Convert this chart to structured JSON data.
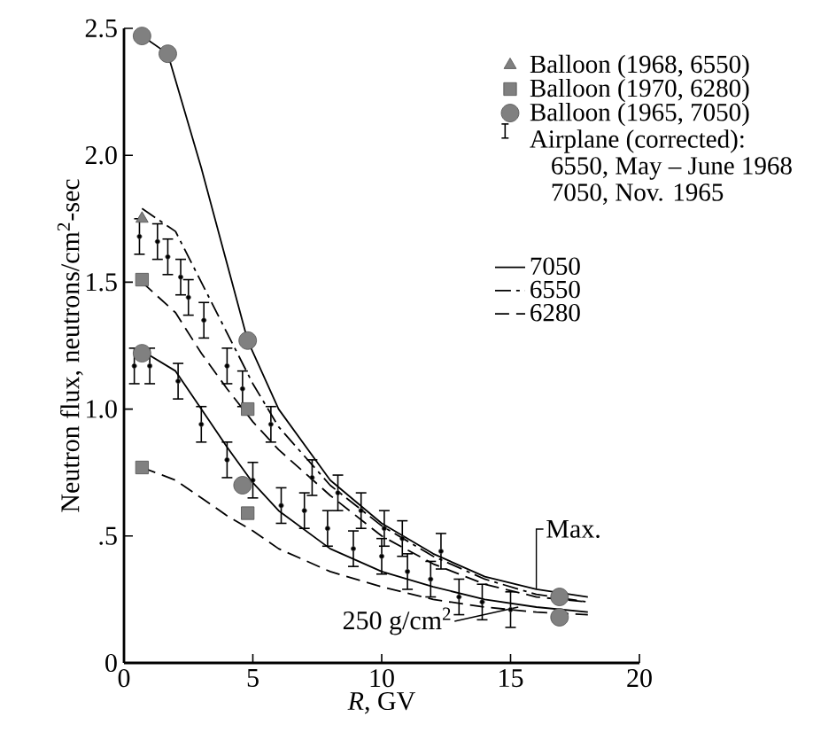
{
  "chart_data": {
    "type": "line",
    "xlabel": "*R*, GV",
    "ylabel": "Neutron flux, neutrons/cm$^{2}$-sec",
    "xlim": [
      0,
      20
    ],
    "xticks": [
      0,
      5,
      10,
      15,
      20
    ],
    "ylim": [
      0,
      2.5
    ],
    "yticks": [
      0,
      {
        "value": 0.5,
        "label": ".5"
      },
      {
        "value": 1.0,
        "label": "1.0"
      },
      {
        "value": 1.5,
        "label": "1.5"
      },
      {
        "value": 2.0,
        "label": "2.0"
      },
      {
        "value": 2.5,
        "label": "2.5"
      }
    ],
    "legend": "top right",
    "series": [
      {
        "name": "Balloon (1968, 6550)",
        "type": "scatter",
        "marker": "triangle",
        "color": "#808080",
        "x": [
          0.7
        ],
        "values": [
          1.75
        ]
      },
      {
        "name": "Balloon (1970, 6280)",
        "type": "scatter",
        "marker": "square",
        "color": "#808080",
        "x": [
          0.7,
          4.8,
          0.7,
          4.8
        ],
        "values": [
          1.51,
          1.0,
          0.77,
          0.59
        ]
      },
      {
        "name": "Balloon (1965, 7050)",
        "type": "scatter",
        "marker": "circle",
        "color": "#808080",
        "x": [
          0.7,
          1.7,
          4.8,
          16.9,
          0.7,
          4.6,
          16.9
        ],
        "values": [
          2.47,
          2.4,
          1.27,
          0.26,
          1.22,
          0.7,
          0.18
        ]
      },
      {
        "name": "Airplane (corrected): 6550, May – June 1968 7050, Nov. 1965",
        "type": "scatter",
        "marker": "circle",
        "color": "#000000",
        "x": [
          0.6,
          1.3,
          1.7,
          2.2,
          2.5,
          3.1,
          4.0,
          4.6,
          5.7,
          7.3,
          8.3,
          9.2,
          10.1,
          10.8,
          12.3,
          0.4,
          1.0,
          2.1,
          3.0,
          4.0,
          5.0,
          6.1,
          7.0,
          7.9,
          8.9,
          10.0,
          11.0,
          11.9,
          13.0,
          13.9,
          15.0
        ],
        "values": [
          1.68,
          1.66,
          1.6,
          1.52,
          1.44,
          1.35,
          1.17,
          1.08,
          0.94,
          0.73,
          0.67,
          0.6,
          0.53,
          0.49,
          0.44,
          1.17,
          1.17,
          1.11,
          0.94,
          0.8,
          0.72,
          0.62,
          0.6,
          0.53,
          0.45,
          0.42,
          0.36,
          0.33,
          0.26,
          0.24,
          0.21
        ],
        "errors": [
          0.07,
          0.07,
          0.07,
          0.07,
          0.07,
          0.07,
          0.07,
          0.07,
          0.07,
          0.07,
          0.07,
          0.07,
          0.07,
          0.07,
          0.07,
          0.07,
          0.07,
          0.07,
          0.07,
          0.07,
          0.07,
          0.07,
          0.07,
          0.07,
          0.07,
          0.07,
          0.07,
          0.07,
          0.07,
          0.07,
          0.07
        ]
      },
      {
        "name": "7050",
        "line_style": "solid",
        "color": "#000000",
        "x": [
          0.7,
          1.7,
          3,
          4.8,
          6,
          8,
          10,
          12,
          14,
          16,
          18
        ],
        "values": [
          2.47,
          2.4,
          1.95,
          1.27,
          1.0,
          0.72,
          0.55,
          0.43,
          0.34,
          0.29,
          0.26
        ]
      },
      {
        "name": "6550",
        "line_style": "dashdot",
        "color": "#000000",
        "x": [
          0.7,
          2,
          3,
          4,
          5,
          6,
          8,
          10,
          12,
          14,
          16,
          18
        ],
        "values": [
          1.79,
          1.7,
          1.5,
          1.3,
          1.1,
          0.93,
          0.7,
          0.54,
          0.42,
          0.33,
          0.27,
          0.24
        ]
      },
      {
        "name": "6280",
        "line_style": "dashed",
        "color": "#000000",
        "x": [
          0.7,
          2,
          3,
          4,
          5,
          6,
          8,
          10,
          12,
          14,
          16,
          18
        ],
        "values": [
          1.5,
          1.38,
          1.22,
          1.08,
          0.95,
          0.84,
          0.66,
          0.5,
          0.39,
          0.31,
          0.26,
          0.24
        ]
      },
      {
        "line_style": "solid",
        "color": "#000000",
        "x": [
          0.7,
          2,
          3,
          4,
          5,
          6,
          8,
          10,
          12,
          14,
          16,
          18
        ],
        "values": [
          1.23,
          1.15,
          1.0,
          0.85,
          0.71,
          0.6,
          0.45,
          0.36,
          0.3,
          0.25,
          0.22,
          0.2
        ]
      },
      {
        "line_style": "dashed",
        "color": "#000000",
        "x": [
          0.7,
          2,
          3,
          4,
          5,
          6,
          8,
          10,
          12,
          14,
          16,
          18
        ],
        "values": [
          0.77,
          0.72,
          0.65,
          0.58,
          0.52,
          0.45,
          0.36,
          0.3,
          0.25,
          0.22,
          0.2,
          0.19
        ]
      }
    ],
    "annotations": [
      {
        "text": "Max.",
        "x": 16,
        "y": 0.29
      },
      {
        "text": "250 g/cm$^{2}$",
        "x": 15.3,
        "y": 0.22
      }
    ]
  }
}
